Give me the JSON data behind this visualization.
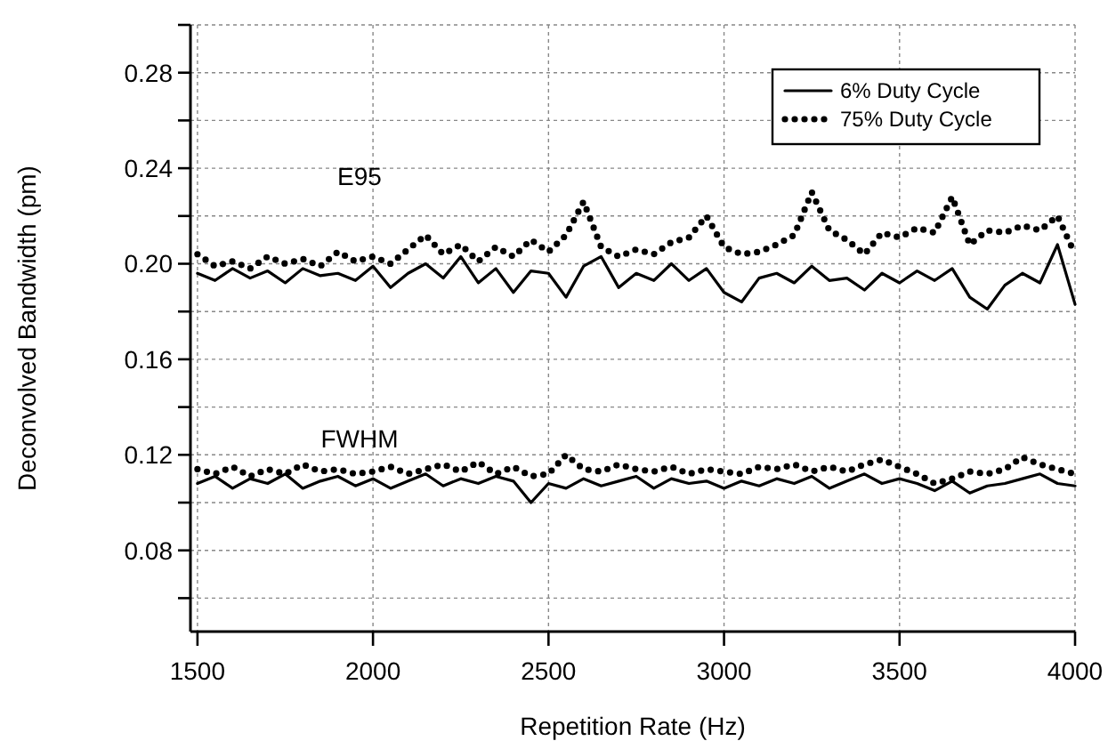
{
  "chart_data": {
    "type": "line",
    "xlabel": "Repetition Rate (Hz)",
    "ylabel": "Deconvolved Bandwidth (pm)",
    "x": [
      1500,
      1550,
      1600,
      1650,
      1700,
      1750,
      1800,
      1850,
      1900,
      1950,
      2000,
      2050,
      2100,
      2150,
      2200,
      2250,
      2300,
      2350,
      2400,
      2450,
      2500,
      2550,
      2600,
      2650,
      2700,
      2750,
      2800,
      2850,
      2900,
      2950,
      3000,
      3050,
      3100,
      3150,
      3200,
      3250,
      3300,
      3350,
      3400,
      3450,
      3500,
      3550,
      3600,
      3650,
      3700,
      3750,
      3800,
      3850,
      3900,
      3950,
      4000
    ],
    "series": [
      {
        "name": "6% Duty Cycle",
        "color": "#000000",
        "line_style": "solid",
        "values": [
          0.196,
          0.193,
          0.198,
          0.194,
          0.197,
          0.192,
          0.198,
          0.195,
          0.196,
          0.193,
          0.199,
          0.19,
          0.196,
          0.2,
          0.194,
          0.203,
          0.192,
          0.198,
          0.188,
          0.197,
          0.196,
          0.186,
          0.199,
          0.203,
          0.19,
          0.196,
          0.193,
          0.2,
          0.193,
          0.198,
          0.188,
          0.184,
          0.194,
          0.196,
          0.192,
          0.199,
          0.193,
          0.194,
          0.189,
          0.196,
          0.192,
          0.197,
          0.193,
          0.198,
          0.186,
          0.181,
          0.191,
          0.196,
          0.192,
          0.208,
          0.183
        ]
      },
      {
        "name": "75% Duty Cycle",
        "color": "#000000",
        "line_style": "dotted",
        "values": [
          0.204,
          0.199,
          0.201,
          0.198,
          0.203,
          0.2,
          0.202,
          0.199,
          0.205,
          0.201,
          0.203,
          0.2,
          0.206,
          0.212,
          0.204,
          0.208,
          0.201,
          0.207,
          0.203,
          0.21,
          0.205,
          0.212,
          0.226,
          0.207,
          0.203,
          0.206,
          0.204,
          0.209,
          0.211,
          0.22,
          0.207,
          0.204,
          0.205,
          0.208,
          0.212,
          0.23,
          0.214,
          0.21,
          0.204,
          0.213,
          0.211,
          0.215,
          0.213,
          0.228,
          0.208,
          0.214,
          0.213,
          0.216,
          0.214,
          0.22,
          0.204
        ]
      },
      {
        "color": "#000000",
        "line_style": "solid",
        "values": [
          0.108,
          0.111,
          0.106,
          0.11,
          0.108,
          0.112,
          0.106,
          0.109,
          0.111,
          0.107,
          0.11,
          0.106,
          0.109,
          0.112,
          0.107,
          0.11,
          0.108,
          0.111,
          0.109,
          0.1,
          0.108,
          0.106,
          0.11,
          0.107,
          0.109,
          0.111,
          0.106,
          0.11,
          0.108,
          0.109,
          0.106,
          0.109,
          0.107,
          0.11,
          0.108,
          0.111,
          0.106,
          0.109,
          0.112,
          0.108,
          0.11,
          0.108,
          0.105,
          0.109,
          0.104,
          0.107,
          0.108,
          0.11,
          0.112,
          0.108,
          0.107
        ]
      },
      {
        "color": "#000000",
        "line_style": "dotted",
        "values": [
          0.114,
          0.112,
          0.115,
          0.111,
          0.114,
          0.112,
          0.116,
          0.113,
          0.114,
          0.112,
          0.113,
          0.115,
          0.112,
          0.114,
          0.116,
          0.113,
          0.117,
          0.112,
          0.115,
          0.111,
          0.112,
          0.12,
          0.114,
          0.113,
          0.116,
          0.114,
          0.113,
          0.115,
          0.112,
          0.114,
          0.113,
          0.112,
          0.115,
          0.114,
          0.116,
          0.113,
          0.115,
          0.113,
          0.116,
          0.118,
          0.115,
          0.112,
          0.108,
          0.11,
          0.113,
          0.112,
          0.114,
          0.119,
          0.116,
          0.114,
          0.112
        ]
      }
    ],
    "xlim": [
      1480,
      4000
    ],
    "xticks": [
      1500,
      2000,
      2500,
      3000,
      3500,
      4000
    ],
    "ylim": [
      0.046,
      0.3
    ],
    "yticks": [
      {
        "value": 0.06,
        "label": null
      },
      {
        "value": 0.08,
        "label": "0.08"
      },
      {
        "value": 0.1,
        "label": null
      },
      {
        "value": 0.12,
        "label": "0.12"
      },
      {
        "value": 0.14,
        "label": null
      },
      {
        "value": 0.16,
        "label": "0.16"
      },
      {
        "value": 0.18,
        "label": null
      },
      {
        "value": 0.2,
        "label": "0.20"
      },
      {
        "value": 0.22,
        "label": null
      },
      {
        "value": 0.24,
        "label": "0.24"
      },
      {
        "value": 0.26,
        "label": null
      },
      {
        "value": 0.28,
        "label": "0.28"
      },
      {
        "value": 0.3,
        "label": null
      }
    ],
    "annotations": [
      "E95",
      "FWHM"
    ],
    "grid": true,
    "legend": "top right"
  }
}
